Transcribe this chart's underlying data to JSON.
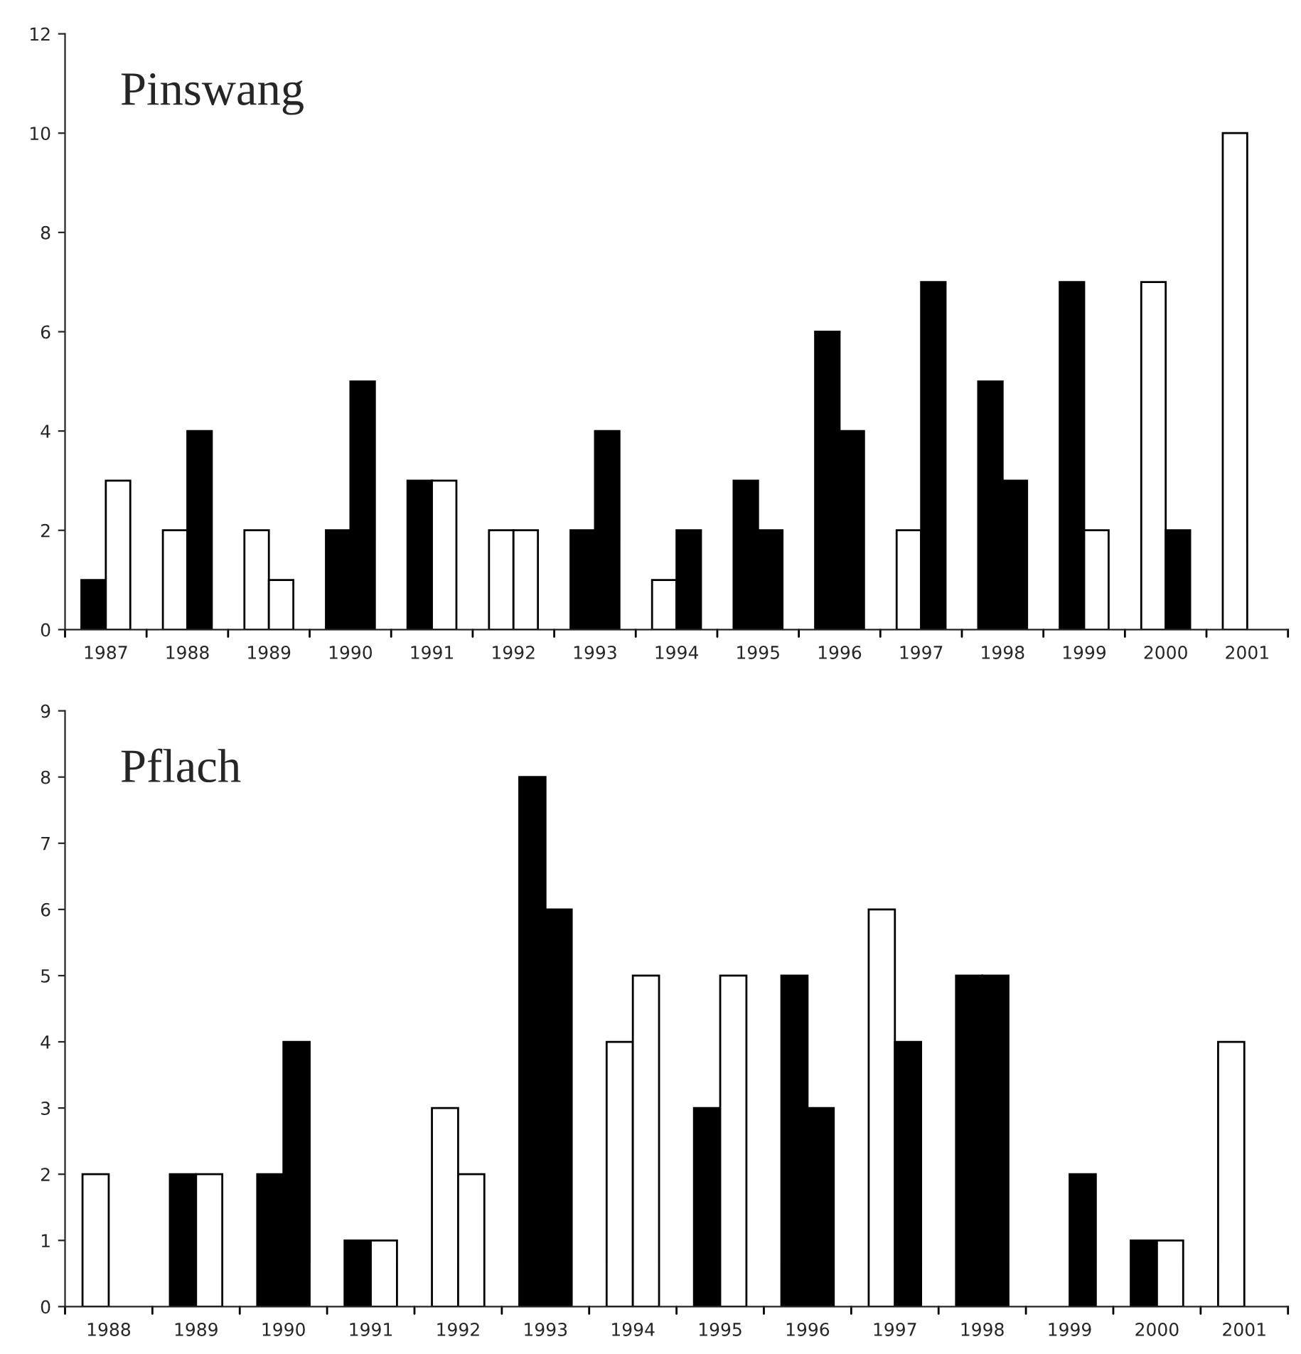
{
  "chart_data": [
    {
      "type": "bar",
      "title": "Pinswang",
      "categories": [
        "1987",
        "1988",
        "1989",
        "1990",
        "1991",
        "1992",
        "1993",
        "1994",
        "1995",
        "1996",
        "1997",
        "1998",
        "1999",
        "2000",
        "2001"
      ],
      "series": [
        {
          "values": [
            1,
            2,
            2,
            2,
            3,
            2,
            2,
            1,
            3,
            6,
            2,
            5,
            7,
            7,
            10
          ],
          "colors": [
            "#000000",
            "#ffffff",
            "#ffffff",
            "#000000",
            "#000000",
            "#ffffff",
            "#000000",
            "#ffffff",
            "#000000",
            "#000000",
            "#ffffff",
            "#000000",
            "#000000",
            "#ffffff",
            "#ffffff"
          ]
        },
        {
          "values": [
            3,
            4,
            1,
            5,
            3,
            2,
            4,
            2,
            2,
            4,
            7,
            3,
            2,
            2,
            null
          ],
          "colors": [
            "#ffffff",
            "#000000",
            "#ffffff",
            "#000000",
            "#ffffff",
            "#ffffff",
            "#000000",
            "#000000",
            "#000000",
            "#000000",
            "#000000",
            "#000000",
            "#ffffff",
            "#000000",
            "#ffffff"
          ]
        }
      ],
      "ylim": [
        0,
        12
      ],
      "yticks": [
        0,
        2,
        4,
        6,
        8,
        10,
        12
      ],
      "grid": false,
      "legend": false
    },
    {
      "type": "bar",
      "title": "Pflach",
      "categories": [
        "1988",
        "1989",
        "1990",
        "1991",
        "1992",
        "1993",
        "1994",
        "1995",
        "1996",
        "1997",
        "1998",
        "1999",
        "2000",
        "2001"
      ],
      "series": [
        {
          "values": [
            2,
            2,
            2,
            1,
            3,
            8,
            4,
            3,
            5,
            6,
            5,
            null,
            1,
            4
          ],
          "colors": [
            "#ffffff",
            "#000000",
            "#000000",
            "#000000",
            "#ffffff",
            "#000000",
            "#ffffff",
            "#000000",
            "#000000",
            "#ffffff",
            "#000000",
            "#000000",
            "#000000",
            "#ffffff"
          ]
        },
        {
          "values": [
            null,
            2,
            4,
            1,
            2,
            6,
            5,
            5,
            3,
            4,
            5,
            2,
            1,
            null
          ],
          "colors": [
            "#ffffff",
            "#ffffff",
            "#000000",
            "#ffffff",
            "#ffffff",
            "#000000",
            "#ffffff",
            "#ffffff",
            "#000000",
            "#000000",
            "#000000",
            "#000000",
            "#ffffff",
            "#ffffff"
          ]
        }
      ],
      "ylim": [
        0,
        9
      ],
      "yticks": [
        0,
        1,
        2,
        3,
        4,
        5,
        6,
        7,
        8,
        9
      ],
      "grid": false,
      "legend": false
    }
  ]
}
